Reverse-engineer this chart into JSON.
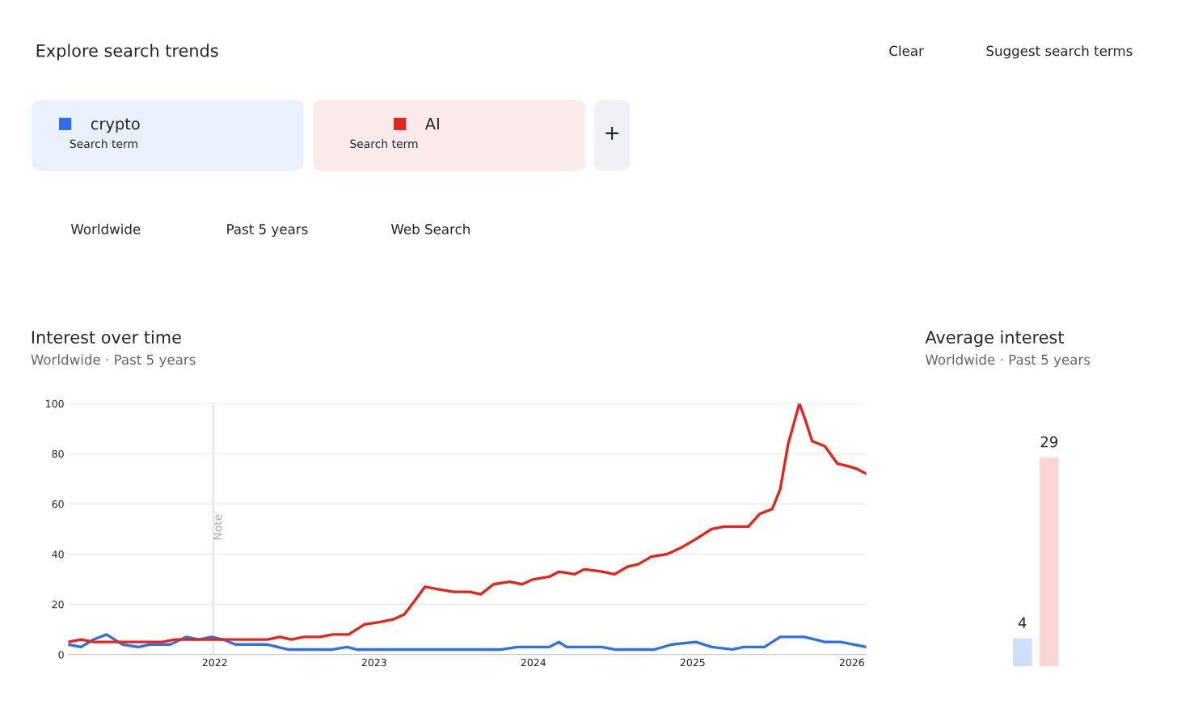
{
  "chart_data": [
    {
      "type": "other",
      "title": "Explore search trends",
      "annotations": [
        "Search term",
        "Search term",
        "+",
        "Clear",
        "Suggest search terms",
        "Worldwide",
        "Past 5 years",
        "Web Search"
      ]
    },
    {
      "type": "line",
      "title": "Interest over time",
      "subtitle": "Worldwide · Past 5 years",
      "xlim": [
        2021.08,
        2026.09
      ],
      "xticks": [
        2022,
        2023,
        2024,
        2025,
        2026
      ],
      "ylim": [
        0,
        100
      ],
      "yticks": [
        0,
        20,
        40,
        60,
        80,
        100
      ],
      "grid": "y",
      "legend": "top left",
      "ref_lines": [
        {
          "axis": "x",
          "value": 2021.99,
          "label": "Note",
          "color": "#dddddd"
        }
      ],
      "series": [
        {
          "name": "crypto",
          "color": "#2f6fe8",
          "x": [
            2021.08,
            2021.16,
            2021.24,
            2021.32,
            2021.37,
            2021.42,
            2021.52,
            2021.59,
            2021.72,
            2021.82,
            2021.9,
            2021.98,
            2022.05,
            2022.13,
            2022.33,
            2022.46,
            2022.74,
            2022.83,
            2022.89,
            2023.8,
            2023.9,
            2024.1,
            2024.16,
            2024.21,
            2024.43,
            2024.51,
            2024.76,
            2024.87,
            2025.02,
            2025.12,
            2025.25,
            2025.32,
            2025.45,
            2025.55,
            2025.7,
            2025.83,
            2025.93,
            2026.09
          ],
          "values": [
            4,
            3,
            6,
            8,
            6,
            4,
            3,
            4,
            4,
            7,
            6,
            7,
            6,
            4,
            4,
            2,
            2,
            3,
            2,
            2,
            3,
            3,
            5,
            3,
            3,
            2,
            2,
            4,
            5,
            3,
            2,
            3,
            3,
            7,
            7,
            5,
            5,
            3
          ]
        },
        {
          "name": "AI",
          "color": "#e3251b",
          "x": [
            2021.08,
            2021.16,
            2021.24,
            2021.67,
            2021.75,
            2022.33,
            2022.41,
            2022.48,
            2022.56,
            2022.66,
            2022.74,
            2022.84,
            2022.94,
            2023.04,
            2023.12,
            2023.19,
            2023.25,
            2023.32,
            2023.4,
            2023.5,
            2023.6,
            2023.67,
            2023.75,
            2023.85,
            2023.93,
            2024.0,
            2024.1,
            2024.16,
            2024.26,
            2024.32,
            2024.43,
            2024.51,
            2024.59,
            2024.66,
            2024.74,
            2024.84,
            2024.94,
            2025.02,
            2025.12,
            2025.2,
            2025.35,
            2025.42,
            2025.5,
            2025.55,
            2025.6,
            2025.67,
            2025.71,
            2025.75,
            2025.83,
            2025.91,
            2025.98,
            2026.03,
            2026.09
          ],
          "values": [
            5,
            6,
            5,
            5,
            6,
            6,
            7,
            6,
            7,
            7,
            8,
            8,
            12,
            13,
            14,
            16,
            21,
            27,
            26,
            25,
            25,
            24,
            28,
            29,
            28,
            30,
            31,
            33,
            32,
            34,
            33,
            32,
            35,
            36,
            39,
            40,
            43,
            46,
            50,
            51,
            51,
            56,
            58,
            66,
            84,
            100,
            93,
            85,
            83,
            76,
            75,
            74,
            72
          ]
        }
      ]
    },
    {
      "type": "bar",
      "title": "Average interest",
      "subtitle": "Worldwide · Past 5 years",
      "categories": [
        null,
        null
      ],
      "values": [
        4,
        29
      ],
      "colors": [
        "#cfdffb",
        "#f9d6d3"
      ],
      "data_labels": true,
      "tick_labels": false
    }
  ]
}
